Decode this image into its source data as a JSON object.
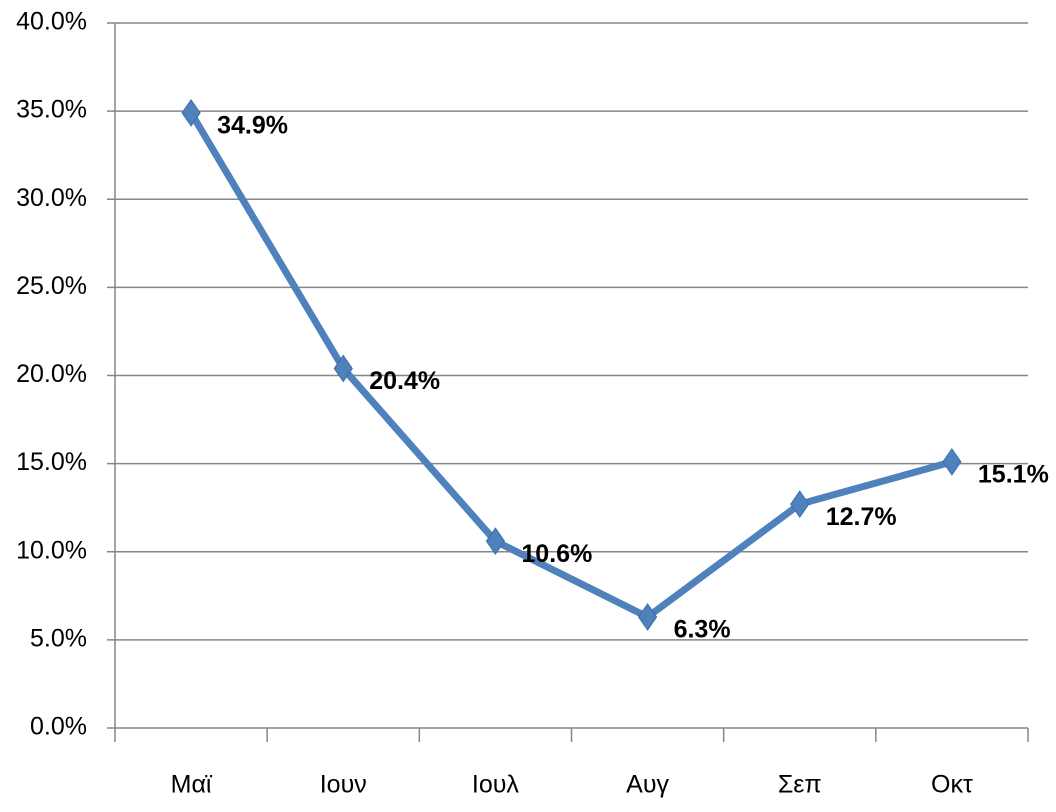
{
  "chart_data": {
    "type": "line",
    "categories": [
      "Μαϊ",
      "Ιουν",
      "Ιουλ",
      "Αυγ",
      "Σεπ",
      "Οκτ"
    ],
    "series": [
      {
        "color": "#4f81bd",
        "values": [
          34.9,
          20.4,
          10.6,
          6.3,
          12.7,
          15.1
        ],
        "value_labels": [
          "34.9%",
          "20.4%",
          "10.6%",
          "6.3%",
          "12.7%",
          "15.1%"
        ]
      }
    ],
    "ylim": [
      0,
      40
    ],
    "yticks": [
      {
        "value": 0,
        "label": "0.0%"
      },
      {
        "value": 5,
        "label": "5.0%"
      },
      {
        "value": 10,
        "label": "10.0%"
      },
      {
        "value": 15,
        "label": "15.0%"
      },
      {
        "value": 20,
        "label": "20.0%"
      },
      {
        "value": 25,
        "label": "25.0%"
      },
      {
        "value": 30,
        "label": "30.0%"
      },
      {
        "value": 35,
        "label": "35.0%"
      },
      {
        "value": 40,
        "label": "40.0%"
      }
    ],
    "grid": true
  }
}
